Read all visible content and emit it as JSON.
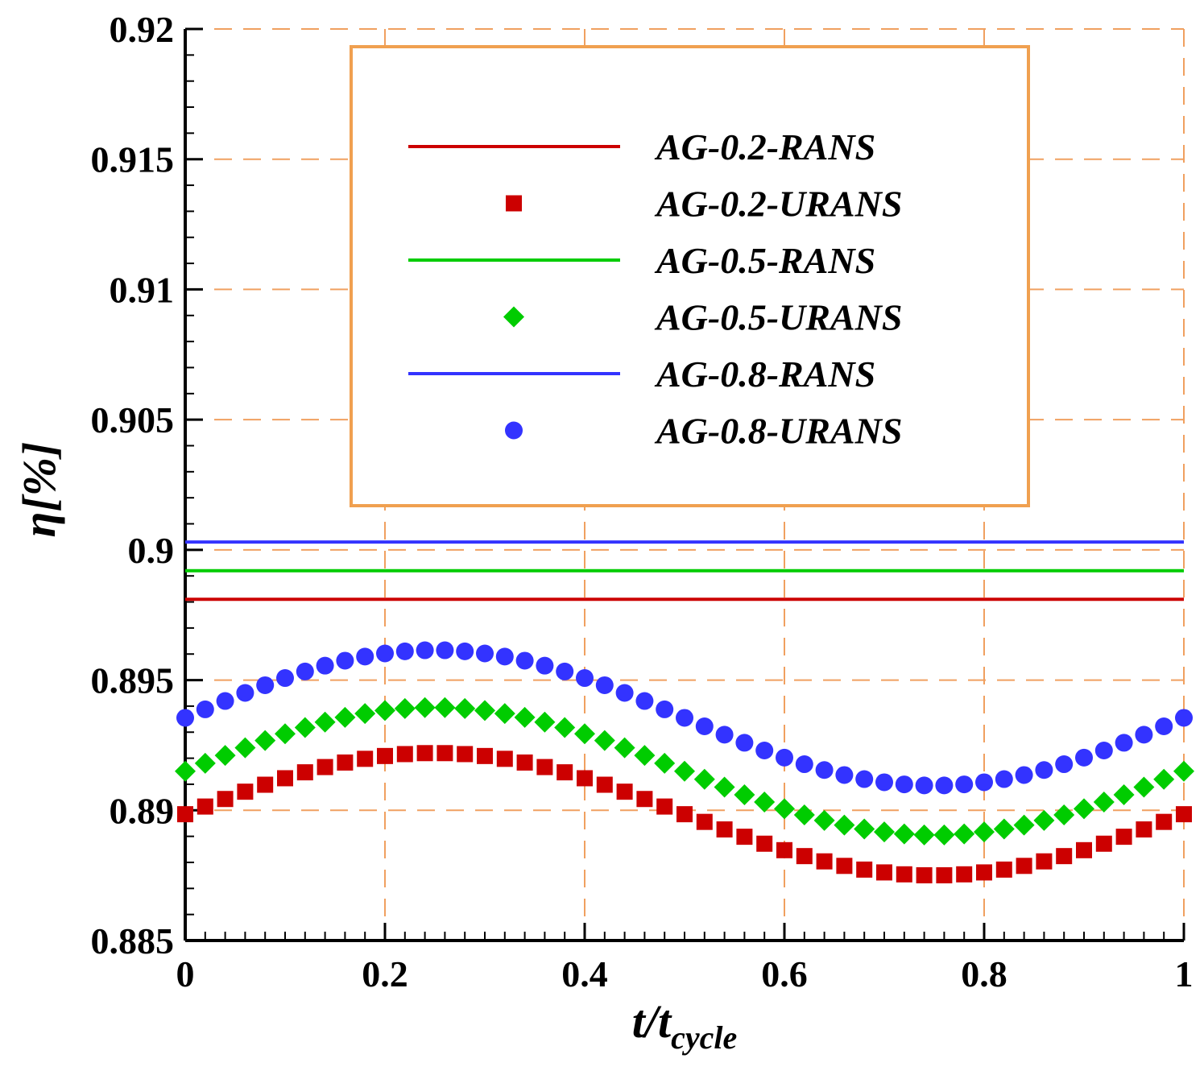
{
  "chart_data": {
    "type": "line",
    "title": "",
    "xlabel_main": "t/t",
    "xlabel_sub": "cycle",
    "ylabel": "η[%]",
    "xlim": [
      0,
      1
    ],
    "ylim": [
      0.885,
      0.92
    ],
    "x_ticks": [
      "0",
      "0.2",
      "0.4",
      "0.6",
      "0.8",
      "1"
    ],
    "y_ticks": [
      "0.885",
      "0.89",
      "0.895",
      "0.9",
      "0.905",
      "0.91",
      "0.915",
      "0.92"
    ],
    "grid": true,
    "legend_position": "top-center",
    "colors": {
      "red": "#cc0000",
      "green": "#00cc00",
      "blue": "#3333ff",
      "grid": "#f0a060",
      "legend_border": "#f0a050"
    },
    "series": [
      {
        "name": "AG-0.2-RANS",
        "style": "line",
        "color": "#cc0000",
        "value": 0.8981
      },
      {
        "name": "AG-0.2-URANS",
        "style": "square",
        "color": "#cc0000",
        "mean": 0.88985,
        "amplitude": 0.00235
      },
      {
        "name": "AG-0.5-RANS",
        "style": "line",
        "color": "#00cc00",
        "value": 0.8992
      },
      {
        "name": "AG-0.5-URANS",
        "style": "diamond",
        "color": "#00cc00",
        "mean": 0.8915,
        "amplitude": 0.00245
      },
      {
        "name": "AG-0.8-RANS",
        "style": "line",
        "color": "#3333ff",
        "value": 0.9003
      },
      {
        "name": "AG-0.8-URANS",
        "style": "circle",
        "color": "#3333ff",
        "mean": 0.89355,
        "amplitude": 0.0026
      }
    ],
    "urans_x": [
      0,
      0.02,
      0.04,
      0.06,
      0.08,
      0.1,
      0.12,
      0.14,
      0.16,
      0.18,
      0.2,
      0.22,
      0.24,
      0.26,
      0.28,
      0.3,
      0.32,
      0.34,
      0.36,
      0.38,
      0.4,
      0.42,
      0.44,
      0.46,
      0.48,
      0.5,
      0.52,
      0.54,
      0.56,
      0.58,
      0.6,
      0.62,
      0.64,
      0.66,
      0.68,
      0.7,
      0.72,
      0.74,
      0.76,
      0.78,
      0.8,
      0.82,
      0.84,
      0.86,
      0.88,
      0.9,
      0.92,
      0.94,
      0.96,
      0.98,
      1
    ]
  }
}
